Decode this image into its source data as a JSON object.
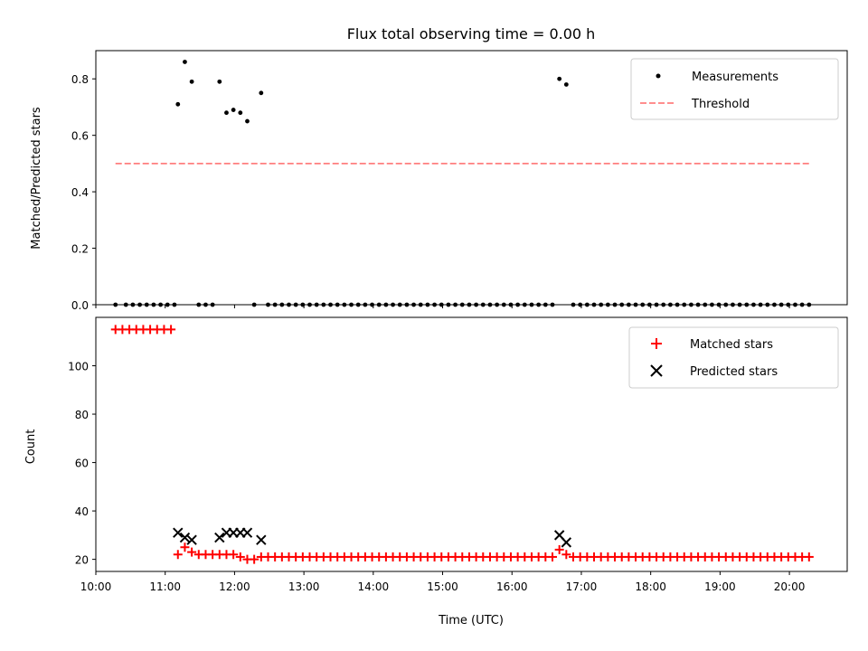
{
  "chart_data": [
    {
      "type": "scatter",
      "title": "Flux total observing time = 0.00 h",
      "xlabel": "",
      "ylabel": "Matched/Predicted stars",
      "ylim": [
        0.0,
        0.9
      ],
      "yticks": [
        "0.0",
        "0.2",
        "0.4",
        "0.6",
        "0.8"
      ],
      "xlim": [
        "10:00",
        "20:50"
      ],
      "legend_position": "upper right",
      "series": [
        {
          "name": "Measurements",
          "kind": "scatter-dot",
          "color": "#000000",
          "points": [
            [
              "10:17",
              0.0
            ],
            [
              "10:26",
              0.0
            ],
            [
              "10:32",
              0.0
            ],
            [
              "10:38",
              0.0
            ],
            [
              "10:44",
              0.0
            ],
            [
              "10:50",
              0.0
            ],
            [
              "10:56",
              0.0
            ],
            [
              "11:02",
              0.0
            ],
            [
              "11:08",
              0.0
            ],
            [
              "11:11",
              0.71
            ],
            [
              "11:17",
              0.86
            ],
            [
              "11:23",
              0.79
            ],
            [
              "11:29",
              0.0
            ],
            [
              "11:35",
              0.0
            ],
            [
              "11:41",
              0.0
            ],
            [
              "11:47",
              0.79
            ],
            [
              "11:53",
              0.68
            ],
            [
              "11:59",
              0.69
            ],
            [
              "12:05",
              0.68
            ],
            [
              "12:11",
              0.65
            ],
            [
              "12:17",
              0.0
            ],
            [
              "12:23",
              0.75
            ],
            [
              "12:29",
              0.0
            ],
            [
              "12:35",
              0.0
            ],
            [
              "12:41",
              0.0
            ],
            [
              "12:47",
              0.0
            ],
            [
              "12:53",
              0.0
            ],
            [
              "12:59",
              0.0
            ],
            [
              "13:05",
              0.0
            ],
            [
              "13:11",
              0.0
            ],
            [
              "13:17",
              0.0
            ],
            [
              "13:23",
              0.0
            ],
            [
              "13:29",
              0.0
            ],
            [
              "13:35",
              0.0
            ],
            [
              "13:41",
              0.0
            ],
            [
              "13:47",
              0.0
            ],
            [
              "13:53",
              0.0
            ],
            [
              "13:59",
              0.0
            ],
            [
              "14:05",
              0.0
            ],
            [
              "14:11",
              0.0
            ],
            [
              "14:17",
              0.0
            ],
            [
              "14:23",
              0.0
            ],
            [
              "14:29",
              0.0
            ],
            [
              "14:35",
              0.0
            ],
            [
              "14:41",
              0.0
            ],
            [
              "14:47",
              0.0
            ],
            [
              "14:53",
              0.0
            ],
            [
              "14:59",
              0.0
            ],
            [
              "15:05",
              0.0
            ],
            [
              "15:11",
              0.0
            ],
            [
              "15:17",
              0.0
            ],
            [
              "15:23",
              0.0
            ],
            [
              "15:29",
              0.0
            ],
            [
              "15:35",
              0.0
            ],
            [
              "15:41",
              0.0
            ],
            [
              "15:47",
              0.0
            ],
            [
              "15:53",
              0.0
            ],
            [
              "15:59",
              0.0
            ],
            [
              "16:05",
              0.0
            ],
            [
              "16:11",
              0.0
            ],
            [
              "16:17",
              0.0
            ],
            [
              "16:23",
              0.0
            ],
            [
              "16:29",
              0.0
            ],
            [
              "16:35",
              0.0
            ],
            [
              "16:41",
              0.8
            ],
            [
              "16:47",
              0.78
            ],
            [
              "16:53",
              0.0
            ],
            [
              "16:59",
              0.0
            ],
            [
              "17:05",
              0.0
            ],
            [
              "17:11",
              0.0
            ],
            [
              "17:17",
              0.0
            ],
            [
              "17:23",
              0.0
            ],
            [
              "17:29",
              0.0
            ],
            [
              "17:35",
              0.0
            ],
            [
              "17:41",
              0.0
            ],
            [
              "17:47",
              0.0
            ],
            [
              "17:53",
              0.0
            ],
            [
              "17:59",
              0.0
            ],
            [
              "18:05",
              0.0
            ],
            [
              "18:11",
              0.0
            ],
            [
              "18:17",
              0.0
            ],
            [
              "18:23",
              0.0
            ],
            [
              "18:29",
              0.0
            ],
            [
              "18:35",
              0.0
            ],
            [
              "18:41",
              0.0
            ],
            [
              "18:47",
              0.0
            ],
            [
              "18:53",
              0.0
            ],
            [
              "18:59",
              0.0
            ],
            [
              "19:05",
              0.0
            ],
            [
              "19:11",
              0.0
            ],
            [
              "19:17",
              0.0
            ],
            [
              "19:23",
              0.0
            ],
            [
              "19:29",
              0.0
            ],
            [
              "19:35",
              0.0
            ],
            [
              "19:41",
              0.0
            ],
            [
              "19:47",
              0.0
            ],
            [
              "19:53",
              0.0
            ],
            [
              "19:59",
              0.0
            ],
            [
              "20:05",
              0.0
            ],
            [
              "20:11",
              0.0
            ],
            [
              "20:17",
              0.0
            ]
          ]
        },
        {
          "name": "Threshold",
          "kind": "dashed-line",
          "color": "#ff7f7f",
          "points": [
            [
              "10:17",
              0.5
            ],
            [
              "20:17",
              0.5
            ]
          ]
        }
      ]
    },
    {
      "type": "scatter",
      "title": "",
      "xlabel": "Time (UTC)",
      "ylabel": "Count",
      "ylim": [
        15,
        120
      ],
      "yticks": [
        "20",
        "40",
        "60",
        "80",
        "100"
      ],
      "xlim": [
        "10:00",
        "20:50"
      ],
      "xticks": [
        "10:00",
        "11:00",
        "12:00",
        "13:00",
        "14:00",
        "15:00",
        "16:00",
        "17:00",
        "18:00",
        "19:00",
        "20:00"
      ],
      "legend_position": "upper right",
      "series": [
        {
          "name": "Matched stars",
          "kind": "plus",
          "color": "#ff0000",
          "points": [
            [
              "10:17",
              115
            ],
            [
              "10:23",
              115
            ],
            [
              "10:29",
              115
            ],
            [
              "10:35",
              115
            ],
            [
              "10:41",
              115
            ],
            [
              "10:47",
              115
            ],
            [
              "10:53",
              115
            ],
            [
              "10:59",
              115
            ],
            [
              "11:05",
              115
            ],
            [
              "11:11",
              22
            ],
            [
              "11:17",
              25
            ],
            [
              "11:23",
              23
            ],
            [
              "11:29",
              22
            ],
            [
              "11:35",
              22
            ],
            [
              "11:41",
              22
            ],
            [
              "11:47",
              22
            ],
            [
              "11:53",
              22
            ],
            [
              "11:59",
              22
            ],
            [
              "12:05",
              21
            ],
            [
              "12:11",
              20
            ],
            [
              "12:17",
              20
            ],
            [
              "12:23",
              21
            ],
            [
              "12:29",
              21
            ],
            [
              "12:35",
              21
            ],
            [
              "12:41",
              21
            ],
            [
              "12:47",
              21
            ],
            [
              "12:53",
              21
            ],
            [
              "12:59",
              21
            ],
            [
              "13:05",
              21
            ],
            [
              "13:11",
              21
            ],
            [
              "13:17",
              21
            ],
            [
              "13:23",
              21
            ],
            [
              "13:29",
              21
            ],
            [
              "13:35",
              21
            ],
            [
              "13:41",
              21
            ],
            [
              "13:47",
              21
            ],
            [
              "13:53",
              21
            ],
            [
              "13:59",
              21
            ],
            [
              "14:05",
              21
            ],
            [
              "14:11",
              21
            ],
            [
              "14:17",
              21
            ],
            [
              "14:23",
              21
            ],
            [
              "14:29",
              21
            ],
            [
              "14:35",
              21
            ],
            [
              "14:41",
              21
            ],
            [
              "14:47",
              21
            ],
            [
              "14:53",
              21
            ],
            [
              "14:59",
              21
            ],
            [
              "15:05",
              21
            ],
            [
              "15:11",
              21
            ],
            [
              "15:17",
              21
            ],
            [
              "15:23",
              21
            ],
            [
              "15:29",
              21
            ],
            [
              "15:35",
              21
            ],
            [
              "15:41",
              21
            ],
            [
              "15:47",
              21
            ],
            [
              "15:53",
              21
            ],
            [
              "15:59",
              21
            ],
            [
              "16:05",
              21
            ],
            [
              "16:11",
              21
            ],
            [
              "16:17",
              21
            ],
            [
              "16:23",
              21
            ],
            [
              "16:29",
              21
            ],
            [
              "16:35",
              21
            ],
            [
              "16:41",
              24
            ],
            [
              "16:47",
              22
            ],
            [
              "16:53",
              21
            ],
            [
              "16:59",
              21
            ],
            [
              "17:05",
              21
            ],
            [
              "17:11",
              21
            ],
            [
              "17:17",
              21
            ],
            [
              "17:23",
              21
            ],
            [
              "17:29",
              21
            ],
            [
              "17:35",
              21
            ],
            [
              "17:41",
              21
            ],
            [
              "17:47",
              21
            ],
            [
              "17:53",
              21
            ],
            [
              "17:59",
              21
            ],
            [
              "18:05",
              21
            ],
            [
              "18:11",
              21
            ],
            [
              "18:17",
              21
            ],
            [
              "18:23",
              21
            ],
            [
              "18:29",
              21
            ],
            [
              "18:35",
              21
            ],
            [
              "18:41",
              21
            ],
            [
              "18:47",
              21
            ],
            [
              "18:53",
              21
            ],
            [
              "18:59",
              21
            ],
            [
              "19:05",
              21
            ],
            [
              "19:11",
              21
            ],
            [
              "19:17",
              21
            ],
            [
              "19:23",
              21
            ],
            [
              "19:29",
              21
            ],
            [
              "19:35",
              21
            ],
            [
              "19:41",
              21
            ],
            [
              "19:47",
              21
            ],
            [
              "19:53",
              21
            ],
            [
              "19:59",
              21
            ],
            [
              "20:05",
              21
            ],
            [
              "20:11",
              21
            ],
            [
              "20:17",
              21
            ]
          ]
        },
        {
          "name": "Predicted stars",
          "kind": "x",
          "color": "#000000",
          "points": [
            [
              "11:11",
              31
            ],
            [
              "11:17",
              29
            ],
            [
              "11:23",
              28
            ],
            [
              "11:47",
              29
            ],
            [
              "11:53",
              31
            ],
            [
              "11:59",
              31
            ],
            [
              "12:05",
              31
            ],
            [
              "12:11",
              31
            ],
            [
              "12:23",
              28
            ],
            [
              "16:41",
              30
            ],
            [
              "16:47",
              27
            ]
          ]
        }
      ]
    }
  ]
}
